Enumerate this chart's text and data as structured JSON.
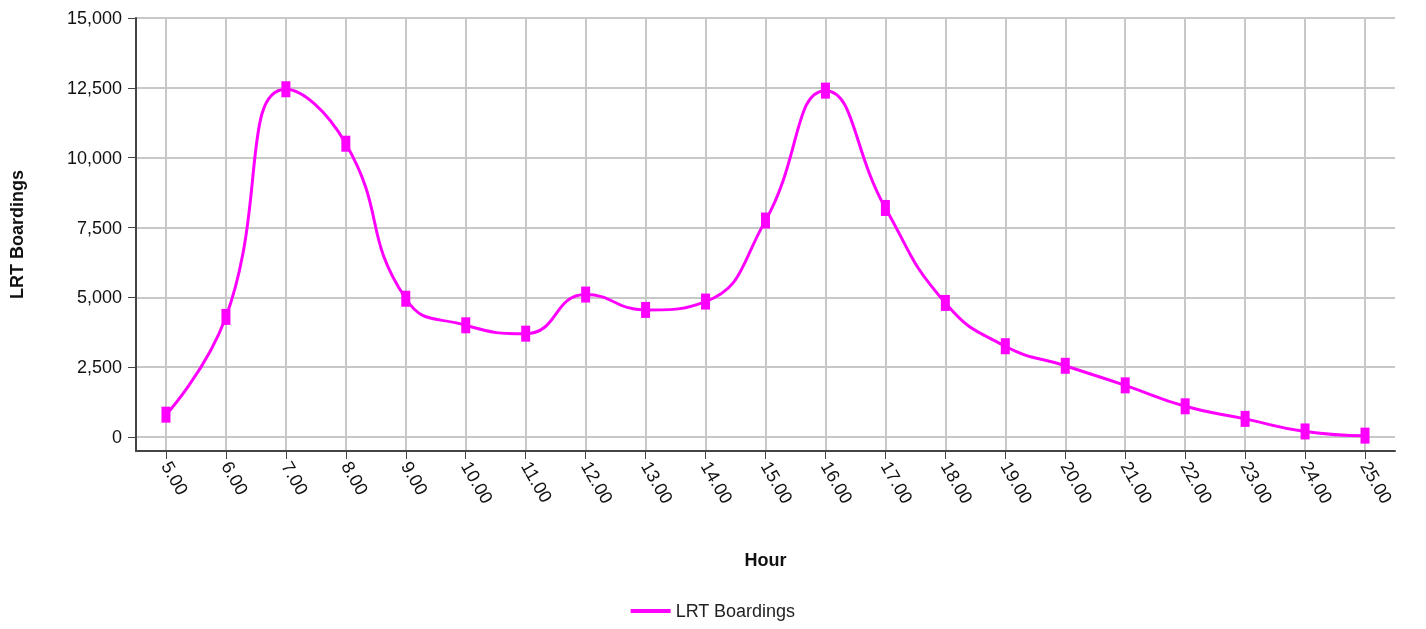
{
  "chart_data": {
    "type": "line",
    "xlabel": "Hour",
    "ylabel": "LRT Boardings",
    "x": [
      5,
      6,
      7,
      8,
      9,
      10,
      11,
      12,
      13,
      14,
      15,
      16,
      17,
      18,
      19,
      20,
      21,
      22,
      23,
      24,
      25
    ],
    "series": [
      {
        "name": "LRT Boardings",
        "color": "#ff00ff",
        "values": [
          800,
          4300,
          12450,
          10500,
          4950,
          4000,
          3700,
          5100,
          4550,
          4850,
          7750,
          12400,
          8200,
          4800,
          3250,
          2550,
          1850,
          1100,
          650,
          200,
          50
        ]
      }
    ],
    "xlim": [
      4.5,
      25.5
    ],
    "xticks": [
      {
        "value": 5,
        "label": "5.00"
      },
      {
        "value": 6,
        "label": "6.00"
      },
      {
        "value": 7,
        "label": "7.00"
      },
      {
        "value": 8,
        "label": "8.00"
      },
      {
        "value": 9,
        "label": "9.00"
      },
      {
        "value": 10,
        "label": "10.00"
      },
      {
        "value": 11,
        "label": "11.00"
      },
      {
        "value": 12,
        "label": "12.00"
      },
      {
        "value": 13,
        "label": "13.00"
      },
      {
        "value": 14,
        "label": "14.00"
      },
      {
        "value": 15,
        "label": "15.00"
      },
      {
        "value": 16,
        "label": "16.00"
      },
      {
        "value": 17,
        "label": "17.00"
      },
      {
        "value": 18,
        "label": "18.00"
      },
      {
        "value": 19,
        "label": "19.00"
      },
      {
        "value": 20,
        "label": "20.00"
      },
      {
        "value": 21,
        "label": "21.00"
      },
      {
        "value": 22,
        "label": "22.00"
      },
      {
        "value": 23,
        "label": "23.00"
      },
      {
        "value": 24,
        "label": "24.00"
      },
      {
        "value": 25,
        "label": "25.00"
      }
    ],
    "ylim": [
      -500,
      15000
    ],
    "yticks": [
      {
        "value": 0,
        "label": "0"
      },
      {
        "value": 2500,
        "label": "2,500"
      },
      {
        "value": 5000,
        "label": "5,000"
      },
      {
        "value": 7500,
        "label": "7,500"
      },
      {
        "value": 10000,
        "label": "10,000"
      },
      {
        "value": 12500,
        "label": "12,500"
      },
      {
        "value": 15000,
        "label": "15,000"
      }
    ],
    "grid": true,
    "legend": "bottom",
    "marker": "square",
    "line_style": "solid"
  }
}
